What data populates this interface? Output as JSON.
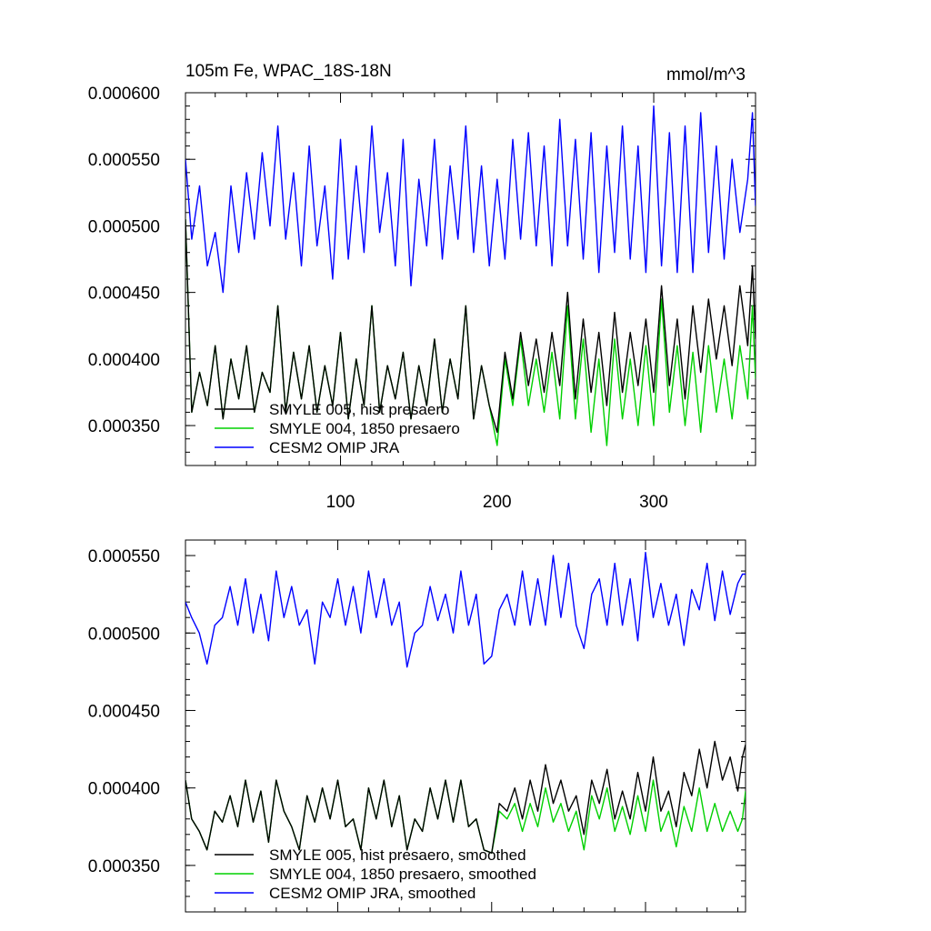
{
  "chart_data": [
    {
      "type": "line",
      "title": "105m Fe, WPAC_18S-18N",
      "units": "mmol/m^3",
      "xlim": [
        1,
        365
      ],
      "ylim": [
        0.00032,
        0.0006
      ],
      "xticks": [
        100,
        200,
        300
      ],
      "yticks": [
        {
          "value": 0.00035,
          "label": "0.000350"
        },
        {
          "value": 0.0004,
          "label": "0.000400"
        },
        {
          "value": 0.00045,
          "label": "0.000450"
        },
        {
          "value": 0.0005,
          "label": "0.000500"
        },
        {
          "value": 0.00055,
          "label": "0.000550"
        },
        {
          "value": 0.0006,
          "label": "0.000600"
        }
      ],
      "legend_position": "bottom-left",
      "series": [
        {
          "name": "SMYLE 005, hist presaero",
          "color": "#000000",
          "x": [
            1,
            5,
            10,
            15,
            20,
            25,
            30,
            35,
            40,
            45,
            50,
            55,
            60,
            65,
            70,
            75,
            80,
            85,
            90,
            95,
            100,
            105,
            110,
            115,
            120,
            125,
            130,
            135,
            140,
            145,
            150,
            155,
            160,
            165,
            170,
            175,
            180,
            185,
            190,
            195,
            200,
            205,
            210,
            215,
            220,
            225,
            230,
            235,
            240,
            245,
            250,
            255,
            260,
            265,
            270,
            275,
            280,
            285,
            290,
            295,
            300,
            305,
            310,
            315,
            320,
            325,
            330,
            335,
            340,
            345,
            350,
            355,
            360,
            363,
            365
          ],
          "values": [
            0.000505,
            0.00036,
            0.00039,
            0.000365,
            0.00041,
            0.000355,
            0.0004,
            0.00037,
            0.00041,
            0.00036,
            0.00039,
            0.000375,
            0.00044,
            0.00036,
            0.000405,
            0.00037,
            0.00041,
            0.00036,
            0.000395,
            0.000365,
            0.00042,
            0.000355,
            0.0004,
            0.000365,
            0.00044,
            0.00036,
            0.000395,
            0.00037,
            0.000405,
            0.000355,
            0.000395,
            0.000365,
            0.000415,
            0.00036,
            0.0004,
            0.00037,
            0.00044,
            0.000355,
            0.000395,
            0.000365,
            0.000345,
            0.000405,
            0.00037,
            0.00042,
            0.00038,
            0.000415,
            0.000375,
            0.00042,
            0.00038,
            0.00045,
            0.00037,
            0.00043,
            0.000375,
            0.00042,
            0.000365,
            0.000435,
            0.000375,
            0.00042,
            0.00038,
            0.00043,
            0.000375,
            0.000455,
            0.00038,
            0.00043,
            0.00037,
            0.00044,
            0.00039,
            0.000445,
            0.0004,
            0.00044,
            0.000395,
            0.000455,
            0.00041,
            0.00047,
            0.000415
          ]
        },
        {
          "name": "SMYLE 004, 1850 presaero",
          "color": "#00d000",
          "x": [
            1,
            5,
            10,
            15,
            20,
            25,
            30,
            35,
            40,
            45,
            50,
            55,
            60,
            65,
            70,
            75,
            80,
            85,
            90,
            95,
            100,
            105,
            110,
            115,
            120,
            125,
            130,
            135,
            140,
            145,
            150,
            155,
            160,
            165,
            170,
            175,
            180,
            185,
            190,
            195,
            200,
            205,
            210,
            215,
            220,
            225,
            230,
            235,
            240,
            245,
            250,
            255,
            260,
            265,
            270,
            275,
            280,
            285,
            290,
            295,
            300,
            305,
            310,
            315,
            320,
            325,
            330,
            335,
            340,
            345,
            350,
            355,
            360,
            363,
            365
          ],
          "values": [
            0.000505,
            0.00036,
            0.00039,
            0.000365,
            0.00041,
            0.000355,
            0.0004,
            0.00037,
            0.00041,
            0.00036,
            0.00039,
            0.000375,
            0.00044,
            0.00036,
            0.000405,
            0.00037,
            0.00041,
            0.00036,
            0.000395,
            0.000365,
            0.00042,
            0.000355,
            0.0004,
            0.000365,
            0.00044,
            0.00036,
            0.000395,
            0.00037,
            0.000405,
            0.000355,
            0.000395,
            0.000365,
            0.000415,
            0.00036,
            0.0004,
            0.00037,
            0.00044,
            0.000355,
            0.000395,
            0.000365,
            0.000335,
            0.0004,
            0.000365,
            0.000415,
            0.000365,
            0.0004,
            0.00036,
            0.000405,
            0.000355,
            0.00044,
            0.000355,
            0.000415,
            0.000345,
            0.0004,
            0.000335,
            0.000415,
            0.000355,
            0.0004,
            0.00035,
            0.00041,
            0.00035,
            0.000445,
            0.00036,
            0.00041,
            0.00035,
            0.000405,
            0.000345,
            0.00041,
            0.00036,
            0.0004,
            0.000355,
            0.00041,
            0.00037,
            0.00044,
            0.000385
          ]
        },
        {
          "name": "CESM2 OMIP JRA",
          "color": "#0000ff",
          "x": [
            1,
            5,
            10,
            15,
            20,
            25,
            30,
            35,
            40,
            45,
            50,
            55,
            60,
            65,
            70,
            75,
            80,
            85,
            90,
            95,
            100,
            105,
            110,
            115,
            120,
            125,
            130,
            135,
            140,
            145,
            150,
            155,
            160,
            165,
            170,
            175,
            180,
            185,
            190,
            195,
            200,
            205,
            210,
            215,
            220,
            225,
            230,
            235,
            240,
            245,
            250,
            255,
            260,
            265,
            270,
            275,
            280,
            285,
            290,
            295,
            300,
            305,
            310,
            315,
            320,
            325,
            330,
            335,
            340,
            345,
            350,
            355,
            360,
            363,
            365
          ],
          "values": [
            0.00055,
            0.00049,
            0.00053,
            0.00047,
            0.000495,
            0.00045,
            0.00053,
            0.00048,
            0.00054,
            0.00049,
            0.000555,
            0.0005,
            0.000575,
            0.00049,
            0.00054,
            0.00047,
            0.00056,
            0.000485,
            0.00053,
            0.00046,
            0.000565,
            0.000475,
            0.000545,
            0.00048,
            0.000575,
            0.000495,
            0.00054,
            0.00047,
            0.000565,
            0.000455,
            0.000535,
            0.000485,
            0.000565,
            0.000475,
            0.000545,
            0.00049,
            0.000575,
            0.00048,
            0.000545,
            0.00047,
            0.000535,
            0.000475,
            0.000565,
            0.00049,
            0.00057,
            0.000485,
            0.00056,
            0.00047,
            0.00058,
            0.000485,
            0.000565,
            0.000475,
            0.00057,
            0.000465,
            0.00056,
            0.00048,
            0.000575,
            0.000475,
            0.00056,
            0.000465,
            0.00059,
            0.00047,
            0.00057,
            0.000465,
            0.000575,
            0.000465,
            0.000585,
            0.00048,
            0.00056,
            0.000475,
            0.00055,
            0.000495,
            0.000535,
            0.000585,
            0.000515
          ]
        }
      ]
    },
    {
      "type": "line",
      "title": "",
      "xlim": [
        1,
        365
      ],
      "ylim": [
        0.00032,
        0.00056
      ],
      "xticks": [
        100,
        200,
        300
      ],
      "yticks": [
        {
          "value": 0.00035,
          "label": "0.000350"
        },
        {
          "value": 0.0004,
          "label": "0.000400"
        },
        {
          "value": 0.00045,
          "label": "0.000450"
        },
        {
          "value": 0.0005,
          "label": "0.000500"
        },
        {
          "value": 0.00055,
          "label": "0.000550"
        }
      ],
      "legend_position": "bottom-left",
      "series": [
        {
          "name": "SMYLE 005, hist presaero, smoothed",
          "color": "#000000",
          "x": [
            1,
            5,
            10,
            15,
            20,
            25,
            30,
            35,
            40,
            45,
            50,
            55,
            60,
            65,
            70,
            75,
            80,
            85,
            90,
            95,
            100,
            105,
            110,
            115,
            120,
            125,
            130,
            135,
            140,
            145,
            150,
            155,
            160,
            165,
            170,
            175,
            180,
            185,
            190,
            195,
            200,
            205,
            210,
            215,
            220,
            225,
            230,
            235,
            240,
            245,
            250,
            255,
            260,
            265,
            270,
            275,
            280,
            285,
            290,
            295,
            300,
            305,
            310,
            315,
            320,
            325,
            330,
            335,
            340,
            345,
            350,
            355,
            360,
            363,
            365
          ],
          "values": [
            0.000405,
            0.00038,
            0.000372,
            0.00036,
            0.000385,
            0.000378,
            0.000395,
            0.000375,
            0.000405,
            0.000378,
            0.000398,
            0.000365,
            0.000405,
            0.000385,
            0.000375,
            0.00036,
            0.000395,
            0.000378,
            0.0004,
            0.00038,
            0.000405,
            0.000375,
            0.00038,
            0.00036,
            0.0004,
            0.00038,
            0.000405,
            0.000375,
            0.000395,
            0.00036,
            0.00038,
            0.000372,
            0.0004,
            0.00038,
            0.000405,
            0.000378,
            0.000405,
            0.000375,
            0.00038,
            0.00036,
            0.000358,
            0.00039,
            0.000385,
            0.0004,
            0.00038,
            0.000405,
            0.000385,
            0.000415,
            0.00039,
            0.000405,
            0.000385,
            0.000395,
            0.00037,
            0.000405,
            0.00039,
            0.000412,
            0.00038,
            0.000398,
            0.00038,
            0.00041,
            0.000385,
            0.00042,
            0.000385,
            0.000398,
            0.000375,
            0.00041,
            0.000395,
            0.000425,
            0.0004,
            0.00043,
            0.000405,
            0.00042,
            0.000398,
            0.00042,
            0.000428
          ]
        },
        {
          "name": "SMYLE 004, 1850 presaero, smoothed",
          "color": "#00d000",
          "x": [
            1,
            5,
            10,
            15,
            20,
            25,
            30,
            35,
            40,
            45,
            50,
            55,
            60,
            65,
            70,
            75,
            80,
            85,
            90,
            95,
            100,
            105,
            110,
            115,
            120,
            125,
            130,
            135,
            140,
            145,
            150,
            155,
            160,
            165,
            170,
            175,
            180,
            185,
            190,
            195,
            200,
            205,
            210,
            215,
            220,
            225,
            230,
            235,
            240,
            245,
            250,
            255,
            260,
            265,
            270,
            275,
            280,
            285,
            290,
            295,
            300,
            305,
            310,
            315,
            320,
            325,
            330,
            335,
            340,
            345,
            350,
            355,
            360,
            363,
            365
          ],
          "values": [
            0.000405,
            0.00038,
            0.000372,
            0.00036,
            0.000385,
            0.000378,
            0.000395,
            0.000375,
            0.000405,
            0.000378,
            0.000398,
            0.000365,
            0.000405,
            0.000385,
            0.000375,
            0.00036,
            0.000395,
            0.000378,
            0.0004,
            0.00038,
            0.000405,
            0.000375,
            0.00038,
            0.00036,
            0.0004,
            0.00038,
            0.000405,
            0.000375,
            0.000395,
            0.00036,
            0.00038,
            0.000372,
            0.0004,
            0.00038,
            0.000405,
            0.000378,
            0.000405,
            0.000375,
            0.00038,
            0.00036,
            0.000358,
            0.000385,
            0.00038,
            0.00039,
            0.000372,
            0.00039,
            0.000375,
            0.0004,
            0.000378,
            0.00039,
            0.000372,
            0.000385,
            0.00036,
            0.000395,
            0.00038,
            0.0004,
            0.000372,
            0.000388,
            0.00037,
            0.000395,
            0.000372,
            0.000405,
            0.000372,
            0.000385,
            0.000362,
            0.000388,
            0.000372,
            0.0004,
            0.000372,
            0.00039,
            0.000372,
            0.000385,
            0.000372,
            0.00038,
            0.000398
          ]
        },
        {
          "name": "CESM2 OMIP JRA, smoothed",
          "color": "#0000ff",
          "x": [
            1,
            5,
            10,
            15,
            20,
            25,
            30,
            35,
            40,
            45,
            50,
            55,
            60,
            65,
            70,
            75,
            80,
            85,
            90,
            95,
            100,
            105,
            110,
            115,
            120,
            125,
            130,
            135,
            140,
            145,
            150,
            155,
            160,
            165,
            170,
            175,
            180,
            185,
            190,
            195,
            200,
            205,
            210,
            215,
            220,
            225,
            230,
            235,
            240,
            245,
            250,
            255,
            260,
            265,
            270,
            275,
            280,
            285,
            290,
            295,
            300,
            305,
            310,
            315,
            320,
            325,
            330,
            335,
            340,
            345,
            350,
            355,
            360,
            363,
            365
          ],
          "values": [
            0.00052,
            0.00051,
            0.0005,
            0.00048,
            0.000505,
            0.00051,
            0.00053,
            0.000505,
            0.000535,
            0.0005,
            0.000525,
            0.000495,
            0.00054,
            0.00051,
            0.00053,
            0.000505,
            0.000515,
            0.00048,
            0.00052,
            0.00051,
            0.000535,
            0.000505,
            0.00053,
            0.0005,
            0.00054,
            0.00051,
            0.000535,
            0.000505,
            0.00052,
            0.000478,
            0.0005,
            0.000505,
            0.00053,
            0.000508,
            0.000525,
            0.0005,
            0.00054,
            0.000505,
            0.000525,
            0.00048,
            0.000485,
            0.000515,
            0.000525,
            0.000505,
            0.00054,
            0.000505,
            0.000535,
            0.000505,
            0.00055,
            0.00051,
            0.000545,
            0.000505,
            0.00049,
            0.000525,
            0.000535,
            0.000505,
            0.000545,
            0.000505,
            0.000535,
            0.000495,
            0.000552,
            0.00051,
            0.000532,
            0.000505,
            0.000525,
            0.000492,
            0.000528,
            0.000515,
            0.000545,
            0.000508,
            0.00054,
            0.000512,
            0.000532,
            0.000538,
            0.000538
          ]
        }
      ]
    }
  ]
}
